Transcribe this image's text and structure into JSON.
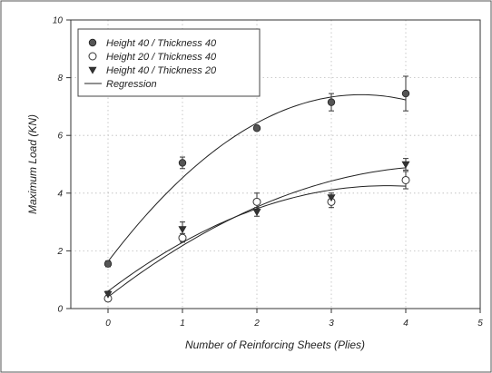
{
  "chart_data": {
    "type": "scatter",
    "xlabel": "Number of Reinforcing Sheets (Plies)",
    "ylabel": "Maximum Load (KN)",
    "xlim": [
      -0.5,
      5
    ],
    "ylim": [
      0,
      10
    ],
    "xticks": [
      0,
      1,
      2,
      3,
      4,
      5
    ],
    "yticks": [
      0,
      2,
      4,
      6,
      8,
      10
    ],
    "grid": "dotted",
    "legend_position": "top-left",
    "series": [
      {
        "name": "Height 40 / Thickness 40",
        "marker": "filled-circle",
        "x": [
          0,
          1,
          2,
          3,
          4
        ],
        "y": [
          1.55,
          5.05,
          6.25,
          7.15,
          7.45
        ],
        "err": [
          0.1,
          0.2,
          0.05,
          0.3,
          0.6
        ],
        "fit": [
          1.63,
          3.4,
          -0.5
        ]
      },
      {
        "name": "Height 20 / Thickness 40",
        "marker": "open-circle",
        "x": [
          0,
          1,
          2,
          3,
          4
        ],
        "y": [
          0.35,
          2.45,
          3.7,
          3.7,
          4.45
        ],
        "err": [
          0.1,
          0.15,
          0.3,
          0.2,
          0.3
        ],
        "fit": [
          0.6,
          1.95,
          -0.26
        ]
      },
      {
        "name": "Height 40 / Thickness 20",
        "marker": "filled-triangle-down",
        "x": [
          0,
          1,
          2,
          3,
          4
        ],
        "y": [
          0.5,
          2.75,
          3.35,
          3.85,
          5.0
        ],
        "err": [
          0.1,
          0.25,
          0.15,
          0.15,
          0.2
        ],
        "fit": [
          0.4,
          2.0,
          -0.22
        ]
      }
    ],
    "regression_label": "Regression",
    "colors": {
      "marker": "#444444",
      "line": "#222222",
      "frame": "#333333",
      "grid": "#bbbbbb"
    }
  }
}
